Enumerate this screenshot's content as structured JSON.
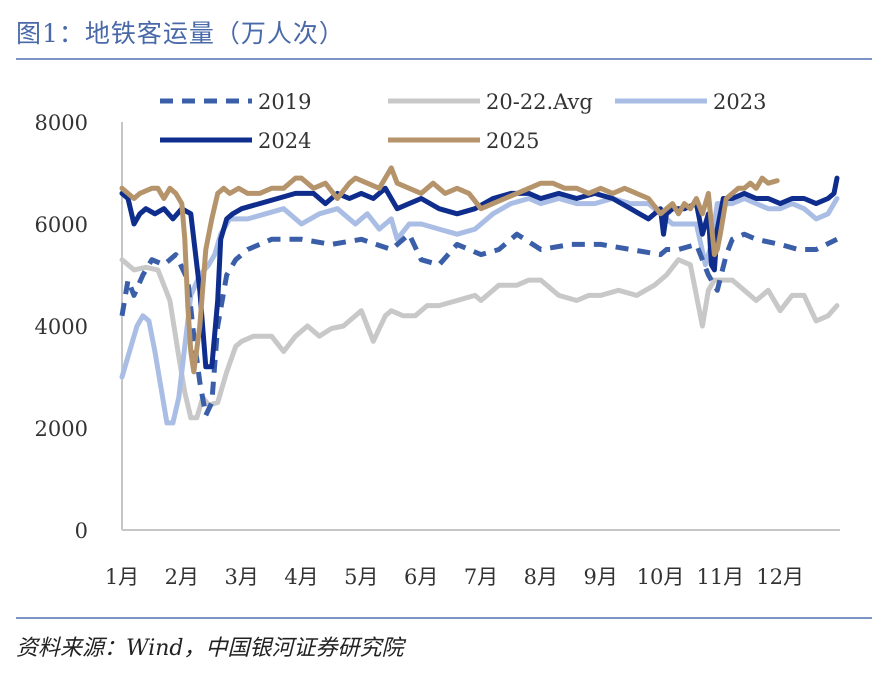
{
  "figure": {
    "title": "图1：地铁客运量（万人次）",
    "source": "资料来源：Wind，中国银河证券研究院"
  },
  "chart_data": {
    "type": "line",
    "title": "图1：地铁客运量（万人次）",
    "xlabel": "",
    "ylabel": "",
    "ylim": [
      0,
      8000
    ],
    "yticks": [
      0,
      2000,
      4000,
      6000,
      8000
    ],
    "x_domain": [
      0,
      12
    ],
    "month_labels": [
      "1月",
      "2月",
      "3月",
      "4月",
      "5月",
      "6月",
      "7月",
      "8月",
      "9月",
      "10月",
      "11月",
      "12月"
    ],
    "grid": false,
    "legend": "top",
    "series": [
      {
        "name": "2019",
        "color": "#3a5fa8",
        "style": "dashed",
        "x": [
          0.0,
          0.1,
          0.2,
          0.35,
          0.5,
          0.7,
          0.9,
          1.1,
          1.2,
          1.3,
          1.4,
          1.5,
          1.6,
          1.75,
          1.9,
          2.1,
          2.3,
          2.5,
          3.0,
          3.5,
          4.0,
          4.5,
          4.8,
          5.0,
          5.3,
          5.6,
          6.0,
          6.3,
          6.6,
          7.0,
          7.5,
          8.0,
          8.5,
          9.0,
          9.1,
          9.3,
          9.6,
          9.8,
          9.95,
          10.1,
          10.2,
          10.4,
          10.6,
          11.0,
          11.3,
          11.6,
          11.95
        ],
        "values": [
          4200,
          4900,
          4600,
          5000,
          5300,
          5200,
          5400,
          4900,
          3800,
          2900,
          2250,
          2500,
          4000,
          5000,
          5300,
          5500,
          5600,
          5700,
          5700,
          5600,
          5700,
          5500,
          5800,
          5300,
          5200,
          5600,
          5400,
          5500,
          5800,
          5500,
          5600,
          5600,
          5500,
          5400,
          5500,
          5500,
          5600,
          5000,
          4700,
          5400,
          5700,
          5800,
          5700,
          5600,
          5500,
          5500,
          5700
        ]
      },
      {
        "name": "20-22.Avg",
        "color": "#c8c8c8",
        "style": "solid",
        "x": [
          0.0,
          0.2,
          0.4,
          0.6,
          0.8,
          0.95,
          1.05,
          1.15,
          1.25,
          1.35,
          1.45,
          1.6,
          1.75,
          1.9,
          2.0,
          2.2,
          2.5,
          2.7,
          2.9,
          3.1,
          3.3,
          3.5,
          3.7,
          4.0,
          4.2,
          4.4,
          4.5,
          4.7,
          4.9,
          5.1,
          5.3,
          5.6,
          5.9,
          6.0,
          6.3,
          6.6,
          6.8,
          7.0,
          7.3,
          7.6,
          7.8,
          8.0,
          8.3,
          8.6,
          8.9,
          9.1,
          9.3,
          9.5,
          9.7,
          9.8,
          9.9,
          9.95,
          10.0,
          10.2,
          10.4,
          10.6,
          10.8,
          11.0,
          11.2,
          11.4,
          11.6,
          11.8,
          11.95
        ],
        "values": [
          5300,
          5100,
          5150,
          5100,
          4500,
          3400,
          2700,
          2200,
          2200,
          2600,
          2450,
          2500,
          3100,
          3600,
          3700,
          3800,
          3800,
          3500,
          3800,
          4000,
          3800,
          3950,
          4000,
          4300,
          3700,
          4200,
          4300,
          4200,
          4200,
          4400,
          4400,
          4500,
          4600,
          4500,
          4800,
          4800,
          4900,
          4900,
          4600,
          4500,
          4600,
          4600,
          4700,
          4600,
          4800,
          5000,
          5300,
          5200,
          4000,
          4700,
          4900,
          4900,
          4900,
          4900,
          4700,
          4500,
          4700,
          4300,
          4600,
          4600,
          4100,
          4200,
          4400
        ]
      },
      {
        "name": "2023",
        "color": "#a9bde5",
        "style": "solid",
        "x": [
          0.0,
          0.1,
          0.25,
          0.35,
          0.45,
          0.55,
          0.65,
          0.75,
          0.85,
          0.95,
          1.05,
          1.15,
          1.3,
          1.45,
          1.55,
          1.65,
          1.8,
          1.95,
          2.1,
          2.4,
          2.7,
          3.0,
          3.3,
          3.6,
          3.9,
          4.0,
          4.1,
          4.3,
          4.5,
          4.6,
          4.8,
          5.0,
          5.3,
          5.6,
          5.9,
          6.2,
          6.5,
          6.8,
          7.0,
          7.3,
          7.6,
          7.9,
          8.2,
          8.5,
          8.8,
          9.0,
          9.2,
          9.4,
          9.6,
          9.75,
          9.85,
          9.95,
          10.05,
          10.2,
          10.4,
          10.6,
          10.8,
          11.0,
          11.2,
          11.4,
          11.6,
          11.8,
          11.95
        ],
        "values": [
          3000,
          3400,
          4000,
          4200,
          4100,
          3500,
          2800,
          2100,
          2100,
          2600,
          3600,
          4600,
          5000,
          5200,
          5400,
          5800,
          6100,
          6100,
          6100,
          6200,
          6300,
          6000,
          6200,
          6300,
          6000,
          6100,
          6200,
          5900,
          6100,
          5700,
          6000,
          6000,
          5900,
          5800,
          5900,
          6200,
          6400,
          6500,
          6400,
          6500,
          6400,
          6400,
          6500,
          6400,
          6400,
          6200,
          6000,
          6000,
          6000,
          5200,
          5600,
          6400,
          6400,
          6400,
          6500,
          6400,
          6300,
          6300,
          6400,
          6300,
          6100,
          6200,
          6500
        ]
      },
      {
        "name": "2024",
        "color": "#0e2d8c",
        "style": "solid",
        "x": [
          0.0,
          0.1,
          0.2,
          0.3,
          0.4,
          0.55,
          0.7,
          0.85,
          1.0,
          1.15,
          1.3,
          1.4,
          1.5,
          1.6,
          1.65,
          1.75,
          1.85,
          2.0,
          2.3,
          2.6,
          2.9,
          3.2,
          3.4,
          3.6,
          3.8,
          4.0,
          4.2,
          4.4,
          4.6,
          4.8,
          5.0,
          5.3,
          5.6,
          5.9,
          6.2,
          6.5,
          6.8,
          7.0,
          7.3,
          7.6,
          7.9,
          8.2,
          8.5,
          8.8,
          9.0,
          9.05,
          9.1,
          9.2,
          9.4,
          9.6,
          9.7,
          9.8,
          9.85,
          9.9,
          9.95,
          10.05,
          10.2,
          10.4,
          10.6,
          10.8,
          11.0,
          11.2,
          11.4,
          11.6,
          11.8,
          11.9,
          11.95
        ],
        "values": [
          6600,
          6500,
          6000,
          6200,
          6300,
          6200,
          6300,
          6100,
          6300,
          6200,
          4700,
          3200,
          3200,
          4500,
          5700,
          6100,
          6200,
          6300,
          6400,
          6500,
          6600,
          6600,
          6400,
          6600,
          6500,
          6600,
          6500,
          6700,
          6300,
          6400,
          6500,
          6300,
          6200,
          6300,
          6500,
          6600,
          6600,
          6500,
          6600,
          6500,
          6600,
          6500,
          6300,
          6100,
          6300,
          5800,
          6200,
          6300,
          6300,
          6400,
          5800,
          6200,
          5200,
          5100,
          5900,
          6500,
          6500,
          6600,
          6500,
          6500,
          6400,
          6500,
          6500,
          6400,
          6500,
          6600,
          6900
        ]
      },
      {
        "name": "2025",
        "color": "#b5946b",
        "style": "solid",
        "x": [
          0.0,
          0.1,
          0.2,
          0.3,
          0.4,
          0.5,
          0.6,
          0.7,
          0.8,
          0.9,
          1.0,
          1.05,
          1.1,
          1.15,
          1.2,
          1.3,
          1.4,
          1.5,
          1.6,
          1.7,
          1.8,
          1.95,
          2.1,
          2.3,
          2.5,
          2.7,
          2.9,
          3.0,
          3.2,
          3.4,
          3.6,
          3.8,
          3.9,
          4.1,
          4.3,
          4.5,
          4.6,
          4.8,
          5.0,
          5.2,
          5.4,
          5.6,
          5.8,
          6.0,
          6.2,
          6.4,
          6.6,
          6.8,
          7.0,
          7.2,
          7.4,
          7.6,
          7.8,
          8.0,
          8.2,
          8.4,
          8.6,
          8.8,
          9.0,
          9.2,
          9.3,
          9.4,
          9.5,
          9.6,
          9.7,
          9.8,
          9.85,
          9.9,
          9.95,
          10.0,
          10.1,
          10.2,
          10.3,
          10.4,
          10.5,
          10.6,
          10.7,
          10.8,
          10.95
        ],
        "values": [
          6700,
          6600,
          6500,
          6600,
          6650,
          6700,
          6700,
          6500,
          6700,
          6600,
          6400,
          5700,
          4400,
          3500,
          3100,
          4000,
          5500,
          6100,
          6600,
          6700,
          6600,
          6700,
          6600,
          6600,
          6700,
          6700,
          6900,
          6900,
          6700,
          6800,
          6500,
          6800,
          6900,
          6800,
          6700,
          7100,
          6800,
          6700,
          6600,
          6800,
          6600,
          6700,
          6600,
          6300,
          6400,
          6500,
          6600,
          6700,
          6800,
          6800,
          6700,
          6700,
          6600,
          6700,
          6600,
          6700,
          6600,
          6500,
          6200,
          6400,
          6200,
          6400,
          6300,
          6500,
          6200,
          6600,
          6000,
          5400,
          5500,
          5800,
          6500,
          6600,
          6700,
          6700,
          6800,
          6700,
          6900,
          6800,
          6850
        ]
      }
    ]
  }
}
